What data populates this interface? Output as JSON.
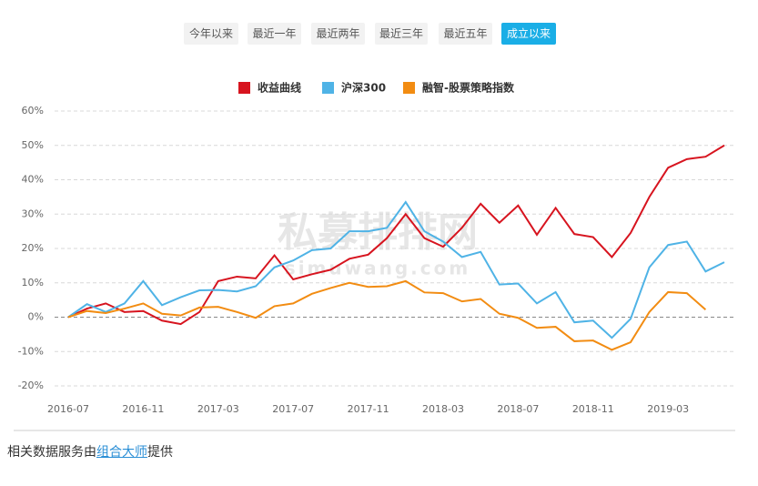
{
  "buttons": [
    {
      "label": "今年以来",
      "active": false
    },
    {
      "label": "最近一年",
      "active": false
    },
    {
      "label": "最近两年",
      "active": false
    },
    {
      "label": "最近三年",
      "active": false
    },
    {
      "label": "最近五年",
      "active": false
    },
    {
      "label": "成立以来",
      "active": true
    }
  ],
  "chart_data": {
    "type": "line",
    "watermark": "私募排排网",
    "watermark_url": "simuwang.com",
    "categories": [
      "2016-07",
      null,
      null,
      null,
      "2016-11",
      null,
      null,
      null,
      "2017-03",
      null,
      null,
      null,
      "2017-07",
      null,
      null,
      null,
      "2017-11",
      null,
      null,
      null,
      "2018-03",
      null,
      null,
      null,
      "2018-07",
      null,
      null,
      null,
      "2018-11",
      null,
      null,
      null,
      "2019-03",
      null,
      null,
      null
    ],
    "series": [
      {
        "name": "收益曲线",
        "color": "#d7141f",
        "values": [
          0,
          2.5,
          4,
          1.5,
          1.8,
          -1,
          -2,
          1.5,
          10.5,
          11.8,
          11.3,
          18,
          11,
          12.5,
          13.8,
          17,
          18.2,
          23,
          30,
          23,
          20.5,
          26,
          33,
          27.5,
          32.5,
          24,
          31.8,
          24.2,
          23.3,
          17.5,
          24.5,
          35,
          43.5,
          46,
          46.7,
          50
        ]
      },
      {
        "name": "沪深300",
        "color": "#4fb3e6",
        "values": [
          0,
          3.8,
          1.5,
          4,
          10.5,
          3.5,
          5.8,
          7.8,
          7.9,
          7.5,
          9,
          14.5,
          16.5,
          19.5,
          20,
          25,
          25,
          26,
          33.5,
          25,
          22,
          17.5,
          19,
          9.5,
          9.8,
          4,
          7.3,
          -1.5,
          -1,
          -6,
          -0.5,
          14.5,
          21,
          22,
          13.3,
          16
        ]
      },
      {
        "name": "融智-股票策略指数",
        "color": "#f28c12",
        "values": [
          0,
          1.8,
          1.2,
          2.5,
          4,
          1,
          0.5,
          2.8,
          3,
          1.5,
          -0.2,
          3.2,
          4,
          6.8,
          8.5,
          10,
          8.8,
          9,
          10.5,
          7.2,
          7,
          4.6,
          5.3,
          1,
          -0.2,
          -3.1,
          -2.8,
          -7,
          -6.8,
          -9.5,
          -7.3,
          1.5,
          7.3,
          7,
          2.2,
          null
        ]
      }
    ],
    "ylim": [
      -20,
      60
    ],
    "yticks": [
      {
        "value": -20,
        "label": "-20%"
      },
      {
        "value": -10,
        "label": "-10%"
      },
      {
        "value": 0,
        "label": "0%"
      },
      {
        "value": 10,
        "label": "10%"
      },
      {
        "value": 20,
        "label": "20%"
      },
      {
        "value": 30,
        "label": "30%"
      },
      {
        "value": 40,
        "label": "40%"
      },
      {
        "value": 50,
        "label": "50%"
      },
      {
        "value": 60,
        "label": "60%"
      }
    ],
    "grid": true
  },
  "footer": {
    "prefix": "相关数据服务由",
    "link": "组合大师",
    "suffix": "提供"
  }
}
